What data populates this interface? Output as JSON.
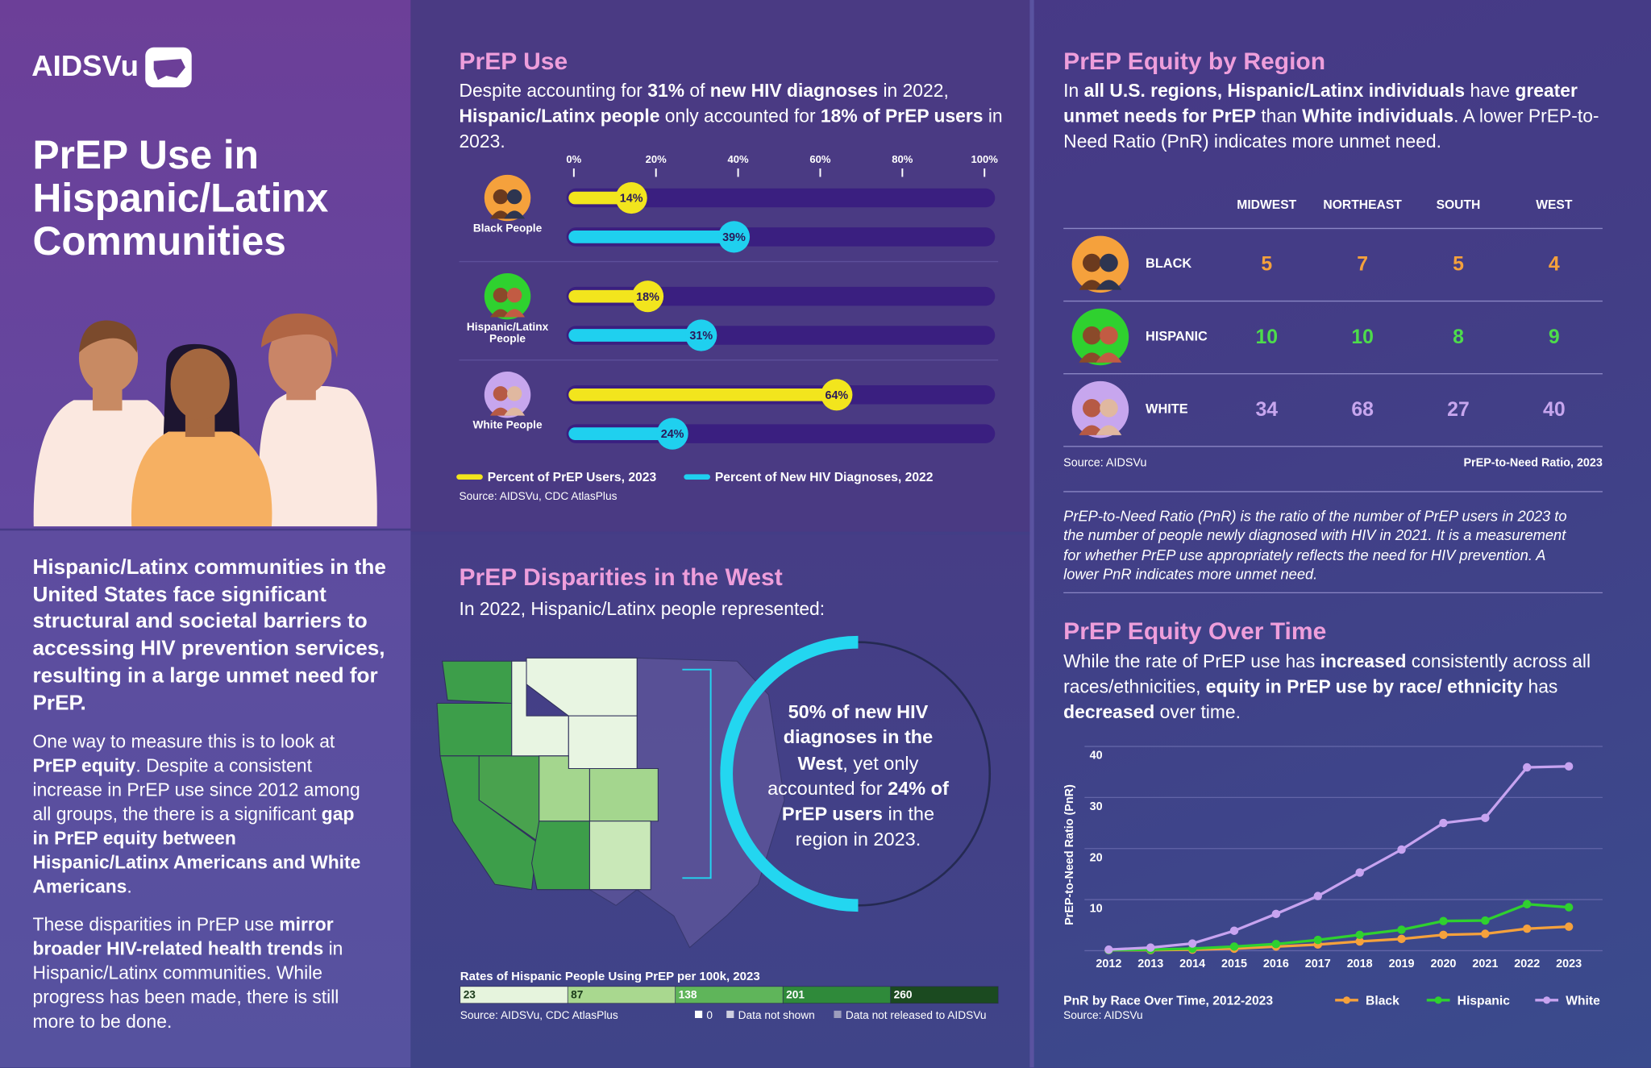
{
  "header": {
    "logo": "AIDSVu",
    "title": "PrEP Use in Hispanic/Latinx Communities"
  },
  "intro": {
    "lead": "Hispanic/Latinx communities in the United States face significant structural and societal barriers to accessing HIV prevention services, resulting in a large unmet need for PrEP.",
    "paragraphs": [
      [
        "One way to measure this is to look at ",
        {
          "bold": "PrEP equity"
        },
        ". Despite a consistent increase in PrEP use since 2012 among all groups, the there is a significant ",
        {
          "bold": "gap in PrEP equity between Hispanic/Latinx Americans and White Americans"
        },
        "."
      ],
      [
        "These disparities in PrEP use ",
        {
          "bold": "mirror broader HIV-related health trends"
        },
        " in Hispanic/Latinx communities. While progress has been made, there is still more to be done."
      ]
    ]
  },
  "prep_use": {
    "heading": "PrEP Use",
    "text": [
      "Despite accounting for ",
      {
        "bold": "31%"
      },
      " of ",
      {
        "bold": "new HIV diagnoses"
      },
      " in 2022, ",
      {
        "bold": "Hispanic/Latinx people"
      },
      " only accounted for ",
      {
        "bold": "18% of PrEP users"
      },
      " in 2023."
    ]
  },
  "disparities": {
    "heading": "PrEP Disparities in the West",
    "subtitle": "In 2022, Hispanic/Latinx people represented:",
    "callout": [
      {
        "bold": "50% of new HIV diagnoses in the West"
      },
      ", yet only accounted for ",
      {
        "bold": "24% of PrEP users"
      },
      " in the region in 2023."
    ],
    "legend_title": "Rates of Hispanic People Using PrEP per 100k, 2023",
    "bins": [
      23,
      87,
      138,
      201,
      260
    ],
    "bin_colors": [
      "#e6f4dd",
      "#a9d88f",
      "#5fb55a",
      "#2f8a3a",
      "#1b4a20"
    ],
    "source": "Source: AIDSVu, CDC AtlasPlus",
    "notes": [
      "0",
      "Data not shown",
      "Data not released to AIDSVu"
    ]
  },
  "equity_region": {
    "heading": "PrEP Equity by Region",
    "text": [
      "In ",
      {
        "bold": "all U.S. regions, Hispanic/Latinx individuals"
      },
      " have ",
      {
        "bold": "greater unmet needs for PrEP"
      },
      " than ",
      {
        "bold": "White individuals"
      },
      ". A lower PrEP-to-Need Ratio (PnR) indicates more unmet need."
    ],
    "table": {
      "columns": [
        "MIDWEST",
        "NORTHEAST",
        "SOUTH",
        "WEST"
      ],
      "rows": [
        {
          "label": "BLACK",
          "color": "#f5a13c",
          "values": [
            5,
            7,
            5,
            4
          ]
        },
        {
          "label": "HISPANIC",
          "color": "#4ddc4b",
          "values": [
            10,
            10,
            8,
            9
          ]
        },
        {
          "label": "WHITE",
          "color": "#c7a6ee",
          "values": [
            34,
            68,
            27,
            40
          ]
        }
      ]
    },
    "source": "Source: AIDSVu",
    "caption": "PrEP-to-Need Ratio, 2023",
    "note": "PrEP-to-Need Ratio (PnR) is the ratio of the number of PrEP users in 2023 to the number of people newly diagnosed with HIV in 2021. It is a measurement for whether PrEP use appropriately reflects the need for HIV prevention. A lower PnR indicates more unmet need."
  },
  "equity_time": {
    "heading": "PrEP Equity Over Time",
    "text": [
      "While the rate of PrEP use has ",
      {
        "bold": "increased"
      },
      " consistently across all races/ethnicities, ",
      {
        "bold": "equity in PrEP use by race/ ethnicity"
      },
      " has ",
      {
        "bold": "decreased"
      },
      " over time."
    ]
  },
  "chart_data": [
    {
      "type": "bar",
      "orientation": "horizontal",
      "categories": [
        "Black People",
        "Hispanic/Latinx People",
        "White People"
      ],
      "series": [
        {
          "name": "Percent of PrEP Users, 2023",
          "color": "#f2e51d",
          "values": [
            14,
            18,
            64
          ],
          "value_labels": [
            "14%",
            "18%",
            "64%"
          ]
        },
        {
          "name": "Percent of New HIV Diagnoses, 2022",
          "color": "#1fd0ef",
          "values": [
            39,
            31,
            24
          ],
          "value_labels": [
            "39%",
            "31%",
            "24%"
          ]
        }
      ],
      "xlim": [
        0,
        100
      ],
      "xticks": [
        {
          "value": 0,
          "label": "0%"
        },
        {
          "value": 20,
          "label": "20%"
        },
        {
          "value": 40,
          "label": "40%"
        },
        {
          "value": 60,
          "label": "60%"
        },
        {
          "value": 80,
          "label": "80%"
        },
        {
          "value": 100,
          "label": "100%"
        }
      ],
      "source": "Source: AIDSVu, CDC AtlasPlus"
    },
    {
      "type": "line",
      "title": "PnR by Race Over Time, 2012-2023",
      "ylabel": "PrEP-to-Need Ratio (PnR)",
      "categories": [
        "2012",
        "2013",
        "2014",
        "2015",
        "2016",
        "2017",
        "2018",
        "2019",
        "2020",
        "2021",
        "2022",
        "2023"
      ],
      "series": [
        {
          "name": "Black",
          "color": "#f5a13c",
          "values": [
            0.1,
            0.1,
            0.2,
            0.4,
            0.8,
            1.2,
            1.8,
            2.3,
            3.1,
            3.3,
            4.3,
            4.7
          ]
        },
        {
          "name": "Hispanic",
          "color": "#2fd12f",
          "values": [
            0.1,
            0.2,
            0.4,
            0.8,
            1.3,
            2.1,
            3.1,
            4.1,
            5.8,
            5.9,
            9.1,
            8.5
          ]
        },
        {
          "name": "White",
          "color": "#c7a3f0",
          "values": [
            0.2,
            0.6,
            1.4,
            3.9,
            7.2,
            10.7,
            15.3,
            19.8,
            25.0,
            26.0,
            35.9,
            36.1
          ]
        }
      ],
      "ylim": [
        0,
        40
      ],
      "yticks": [
        10,
        20,
        30,
        40
      ],
      "grid": true,
      "source": "Source: AIDSVu"
    }
  ]
}
